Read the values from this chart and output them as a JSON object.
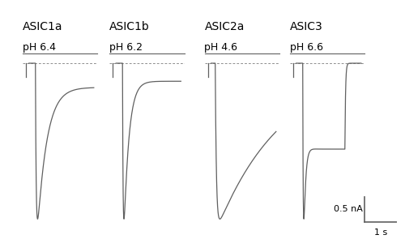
{
  "titles": [
    "ASIC1a",
    "ASIC1b",
    "ASIC2a",
    "ASIC3"
  ],
  "ph_labels": [
    "pH 6.4",
    "pH 6.2",
    "pH 4.6",
    "pH 6.6"
  ],
  "title_fontsize": 10,
  "ph_fontsize": 9,
  "line_color": "#606060",
  "background_color": "#ffffff",
  "scale_bar_label_nA": "0.5 nA",
  "scale_bar_label_s": "1 s"
}
